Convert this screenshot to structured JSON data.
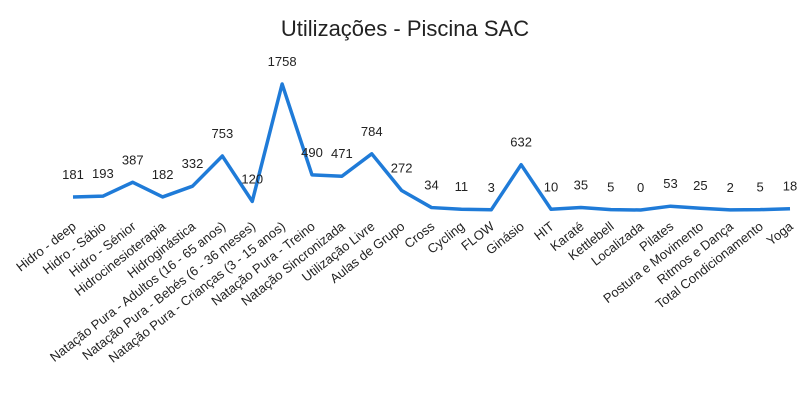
{
  "chart_data": {
    "type": "line",
    "title": "Utilizações - Piscina SAC",
    "categories": [
      "Hidro - deep",
      "Hidro - Sábio",
      "Hidro - Sénior",
      "Hidrocinesioterapia",
      "Hidroginástica",
      "Natação Pura - Adultos (16 - 65 anos)",
      "Natação Pura - Bebés (6 - 36 meses)",
      "Natação Pura - Crianças (3 - 15 anos)",
      "Natação Pura - Treino",
      "Natação Sincronizada",
      "Utilização Livre",
      "Aulas de Grupo",
      "Cross",
      "Cycling",
      "FLOW",
      "Ginásio",
      "HIT",
      "Karaté",
      "Kettlebell",
      "Localizada",
      "Pilates",
      "Postura e Movimento",
      "Ritmos e Dança",
      "Total Condicionamento",
      "Yoga"
    ],
    "values": [
      181,
      193,
      387,
      182,
      332,
      753,
      120,
      1758,
      490,
      471,
      784,
      272,
      34,
      11,
      3,
      632,
      10,
      35,
      5,
      0,
      53,
      25,
      2,
      5,
      18
    ],
    "color": "#1f7bd8"
  }
}
